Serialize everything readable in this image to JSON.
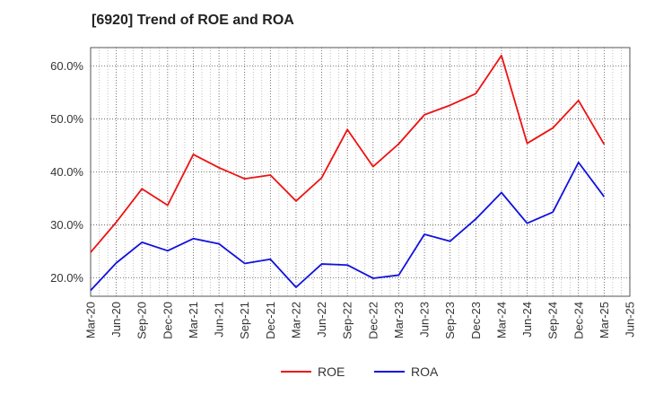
{
  "chart_data": {
    "type": "line",
    "title": "[6920]  Trend of ROE and ROA",
    "x": [
      "Mar-20",
      "Jun-20",
      "Sep-20",
      "Dec-20",
      "Mar-21",
      "Jun-21",
      "Sep-21",
      "Dec-21",
      "Mar-22",
      "Jun-22",
      "Sep-22",
      "Dec-22",
      "Mar-23",
      "Jun-23",
      "Sep-23",
      "Dec-23",
      "Mar-24",
      "Jun-24",
      "Sep-24",
      "Dec-24",
      "Mar-25",
      "Jun-25"
    ],
    "series": [
      {
        "name": "ROE",
        "color": "#ee1111",
        "values": [
          24.8,
          30.5,
          36.8,
          33.7,
          43.3,
          40.8,
          38.7,
          39.4,
          34.5,
          38.9,
          48.0,
          41.0,
          45.3,
          50.8,
          52.6,
          54.8,
          62.0,
          45.4,
          48.3,
          53.5,
          45.2,
          null
        ]
      },
      {
        "name": "ROA",
        "color": "#1111dd",
        "values": [
          17.6,
          22.8,
          26.7,
          25.1,
          27.4,
          26.4,
          22.7,
          23.5,
          18.2,
          22.6,
          22.4,
          19.9,
          20.5,
          28.2,
          26.9,
          31.1,
          36.1,
          30.3,
          32.4,
          41.8,
          35.3,
          null
        ]
      }
    ],
    "y_ticks": [
      "20.0%",
      "30.0%",
      "40.0%",
      "50.0%",
      "60.0%"
    ],
    "ylim": [
      16.5,
      63.5
    ],
    "xlabel": "",
    "ylabel": "",
    "grid": true,
    "legend": "bottom-center"
  }
}
